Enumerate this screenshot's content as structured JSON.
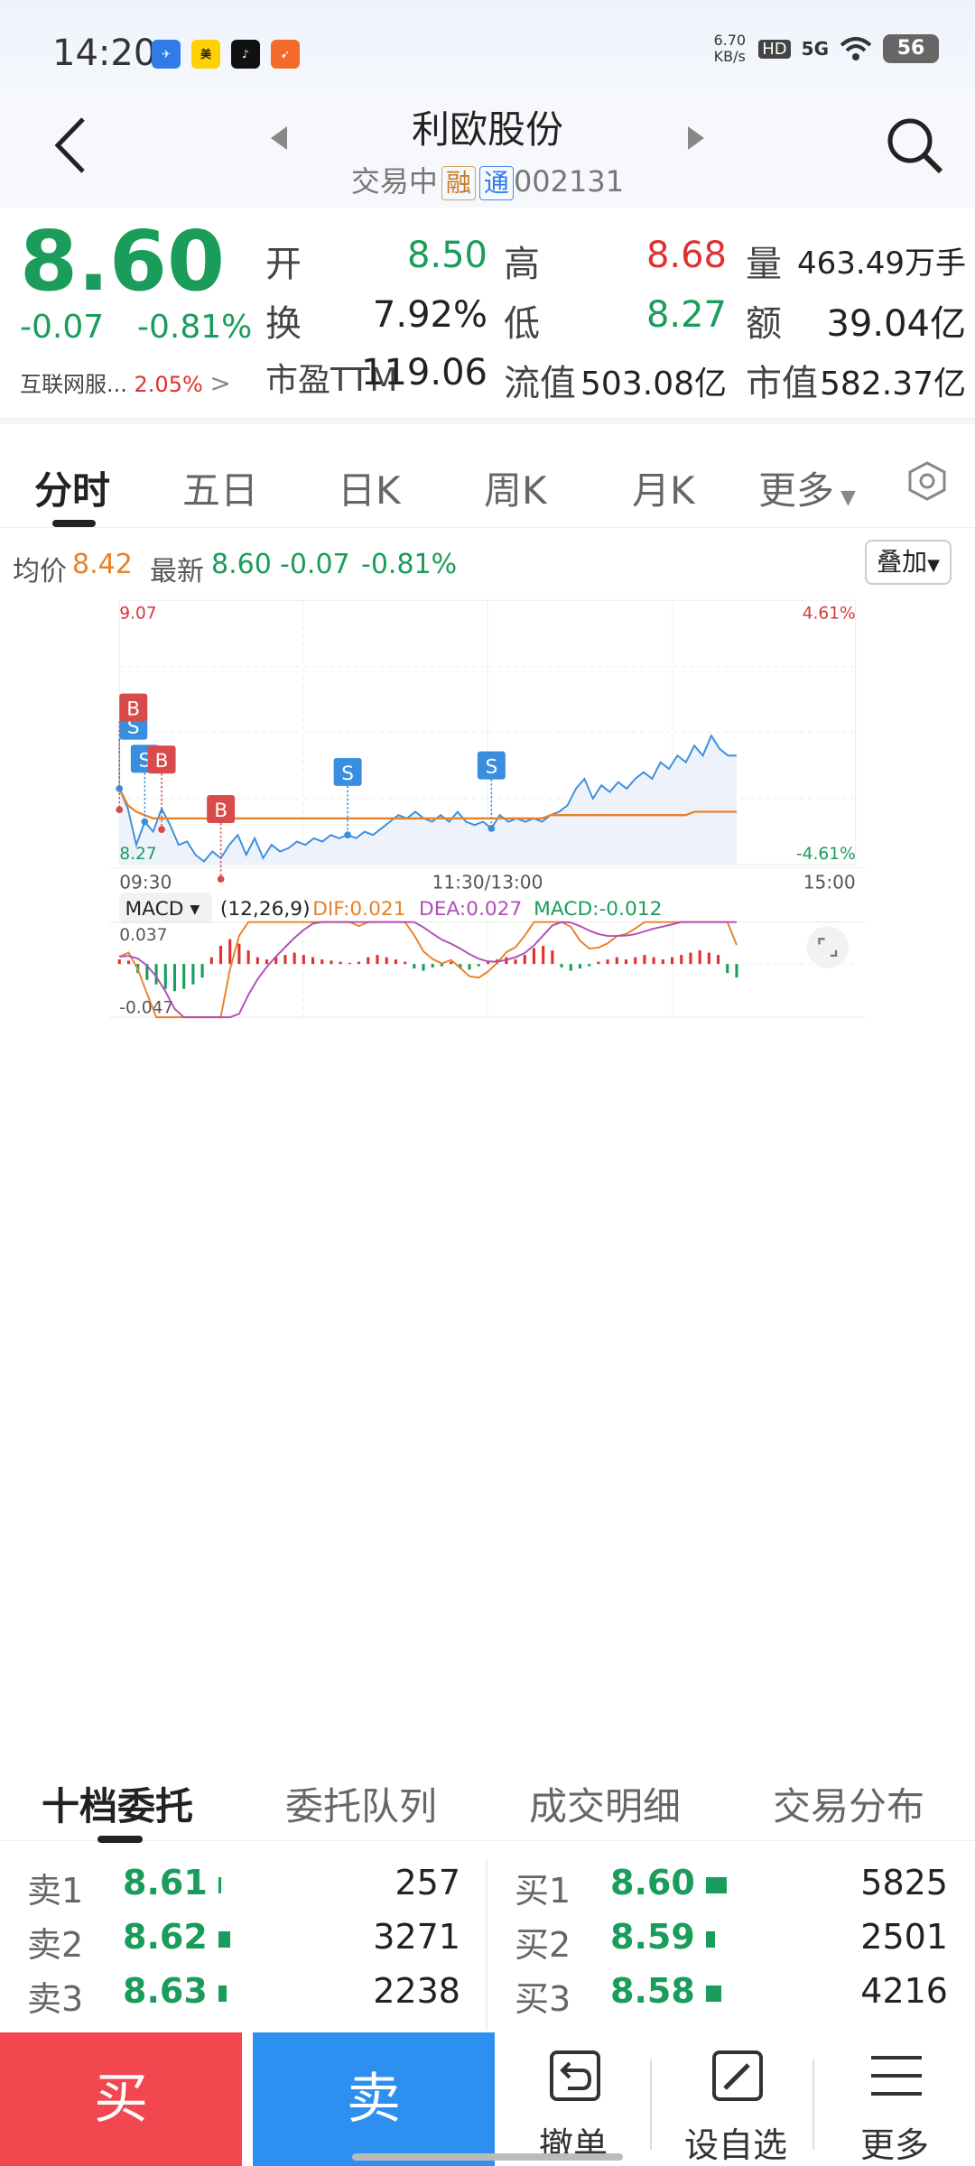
{
  "status_bar": {
    "time": "14:20",
    "net_speed": "6.70 KB/s",
    "network": "5G",
    "battery": "56",
    "apps": [
      "app-icon-1",
      "meituan",
      "tiktok",
      "app-icon-4"
    ]
  },
  "header": {
    "title": "利欧股份",
    "trading_status": "交易中",
    "tag_margin": "融",
    "tag_connect": "通",
    "code": "002131"
  },
  "quote": {
    "price": "8.60",
    "change": "-0.07",
    "change_pct": "-0.81%",
    "sector": "互联网服...",
    "sector_pct": "2.05%",
    "open_label": "开",
    "open": "8.50",
    "high_label": "高",
    "high": "8.68",
    "volume_label": "量",
    "volume": "463.49万手",
    "turnover_label": "换",
    "turnover": "7.92%",
    "low_label": "低",
    "low": "8.27",
    "amount_label": "额",
    "amount": "39.04亿",
    "pe_label": "市盈TTM",
    "pe": "119.06",
    "float_cap_label": "流值",
    "float_cap": "503.08亿",
    "market_cap_label": "市值",
    "market_cap": "582.37亿"
  },
  "tabs": [
    "分时",
    "五日",
    "日K",
    "周K",
    "月K",
    "更多"
  ],
  "chart_header": {
    "avg_label": "均价",
    "avg": "8.42",
    "latest_label": "最新",
    "latest": "8.60",
    "latest_chg": "-0.07",
    "latest_pct": "-0.81%",
    "overlay_btn": "叠加"
  },
  "chart_data": [
    {
      "type": "line",
      "series": [
        {
          "values": [
            8.5,
            8.44,
            8.33,
            8.4,
            8.37,
            8.44,
            8.39,
            8.33,
            8.34,
            8.3,
            8.28,
            8.31,
            8.29,
            8.33,
            8.36,
            8.3,
            8.35,
            8.29,
            8.33,
            8.31,
            8.32,
            8.34,
            8.33,
            8.35,
            8.34,
            8.36,
            8.35,
            8.36,
            8.35,
            8.37,
            8.36,
            8.38,
            8.4,
            8.42,
            8.41,
            8.43,
            8.41,
            8.4,
            8.42,
            8.4,
            8.43,
            8.4,
            8.39,
            8.4,
            8.38,
            8.42,
            8.4,
            8.41,
            8.4,
            8.41,
            8.4,
            8.42,
            8.43,
            8.45,
            8.5,
            8.53,
            8.47,
            8.51,
            8.49,
            8.52,
            8.5,
            8.53,
            8.55,
            8.53,
            8.58,
            8.56,
            8.6,
            8.58,
            8.63,
            8.6,
            8.66,
            8.62,
            8.6,
            8.6
          ]
        },
        {
          "values": [
            8.5,
            8.45,
            8.43,
            8.42,
            8.41,
            8.41,
            8.41,
            8.41,
            8.41,
            8.41,
            8.41,
            8.41,
            8.41,
            8.41,
            8.41,
            8.41,
            8.41,
            8.41,
            8.41,
            8.41,
            8.41,
            8.41,
            8.41,
            8.41,
            8.41,
            8.41,
            8.41,
            8.41,
            8.41,
            8.41,
            8.41,
            8.41,
            8.41,
            8.41,
            8.41,
            8.41,
            8.41,
            8.41,
            8.41,
            8.41,
            8.41,
            8.41,
            8.41,
            8.41,
            8.41,
            8.41,
            8.41,
            8.41,
            8.41,
            8.41,
            8.41,
            8.42,
            8.42,
            8.42,
            8.42,
            8.42,
            8.42,
            8.42,
            8.42,
            8.42,
            8.42,
            8.42,
            8.42,
            8.42,
            8.42,
            8.42,
            8.42,
            8.42,
            8.43,
            8.43,
            8.43,
            8.43,
            8.43,
            8.43
          ]
        }
      ],
      "ylim": [
        8.27,
        9.07
      ],
      "y_ticks_left": [
        "9.07",
        "8.27"
      ],
      "y_ticks_right": [
        "4.61%",
        "-4.61%"
      ],
      "x_ticks": [
        "09:30",
        "11:30/13:00",
        "15:00"
      ],
      "markers": [
        {
          "label": "S",
          "index": 0
        },
        {
          "label": "B",
          "index": 0
        },
        {
          "label": "S",
          "index": 3
        },
        {
          "label": "B",
          "index": 5
        },
        {
          "label": "B",
          "index": 12
        },
        {
          "label": "S",
          "index": 27
        },
        {
          "label": "S",
          "index": 44
        }
      ]
    },
    {
      "type": "bar",
      "title": "MACD",
      "params": "(12,26,9)",
      "dif_label": "DIF:0.021",
      "dea_label": "DEA:0.027",
      "macd_label": "MACD:-0.012",
      "ylim": [
        -0.047,
        0.037
      ],
      "y_ticks": [
        "0.037",
        "-0.047"
      ],
      "values": [
        0.004,
        0.003,
        -0.008,
        -0.014,
        -0.018,
        -0.022,
        -0.024,
        -0.022,
        -0.018,
        -0.012,
        0.006,
        0.016,
        0.022,
        0.018,
        0.012,
        0.006,
        0.004,
        0.006,
        0.008,
        0.01,
        0.008,
        0.006,
        0.004,
        0.003,
        0.002,
        0.001,
        0.002,
        0.006,
        0.008,
        0.006,
        0.004,
        0.002,
        -0.004,
        -0.006,
        -0.003,
        -0.002,
        0.002,
        -0.004,
        -0.005,
        -0.002,
        0.002,
        0.004,
        0.006,
        0.004,
        0.008,
        0.014,
        0.016,
        0.012,
        -0.003,
        -0.006,
        -0.004,
        -0.002,
        0.002,
        0.004,
        0.006,
        0.004,
        0.006,
        0.008,
        0.006,
        0.004,
        0.006,
        0.008,
        0.01,
        0.012,
        0.01,
        0.008,
        -0.008,
        -0.012
      ]
    }
  ],
  "order_tabs": [
    "十档委托",
    "委托队列",
    "成交明细",
    "交易分布"
  ],
  "order_book": {
    "asks": [
      {
        "label": "卖1",
        "price": "8.61",
        "vol": "257"
      },
      {
        "label": "卖2",
        "price": "8.62",
        "vol": "3271"
      },
      {
        "label": "卖3",
        "price": "8.63",
        "vol": "2238"
      }
    ],
    "bids": [
      {
        "label": "买1",
        "price": "8.60",
        "vol": "5825"
      },
      {
        "label": "买2",
        "price": "8.59",
        "vol": "2501"
      },
      {
        "label": "买3",
        "price": "8.58",
        "vol": "4216"
      }
    ]
  },
  "bottom_bar": {
    "buy": "买",
    "sell": "卖",
    "cancel": "撤单",
    "watch": "设自选",
    "more": "更多"
  },
  "colors": {
    "up": "#e03030",
    "down": "#1a9c5a",
    "price_line": "#3a8ee0",
    "avg_line": "#e8822a",
    "dea_line": "#b04eb8",
    "buy_btn": "#f2474e",
    "sell_btn": "#2d8ff0"
  }
}
